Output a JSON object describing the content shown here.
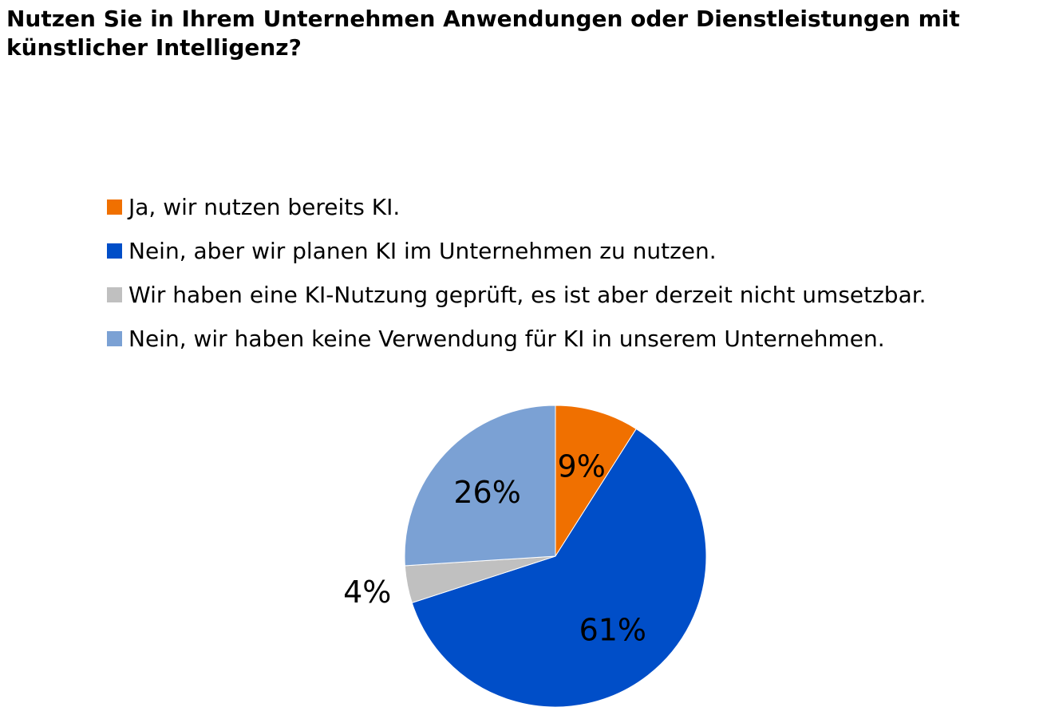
{
  "chart_data": {
    "type": "pie",
    "title": "Nutzen Sie in Ihrem Unternehmen Anwendungen oder Dienstleistungen mit künstlicher Intelligenz?",
    "legend_position": "top",
    "start_angle_deg": 0,
    "direction": "clockwise",
    "slices": [
      {
        "label": "Ja, wir nutzen bereits KI.",
        "value": 9,
        "display": "9%",
        "color": "#f07000"
      },
      {
        "label": "Nein, aber wir planen KI im Unternehmen zu nutzen.",
        "value": 61,
        "display": "61%",
        "color": "#004ec8"
      },
      {
        "label": "Wir haben eine KI-Nutzung geprüft, es ist aber derzeit nicht umsetzbar.",
        "value": 4,
        "display": "4%",
        "color": "#c0c0c0"
      },
      {
        "label": "Nein, wir haben keine Verwendung für KI in unserem Unternehmen.",
        "value": 26,
        "display": "26%",
        "color": "#7ba1d4"
      }
    ]
  }
}
